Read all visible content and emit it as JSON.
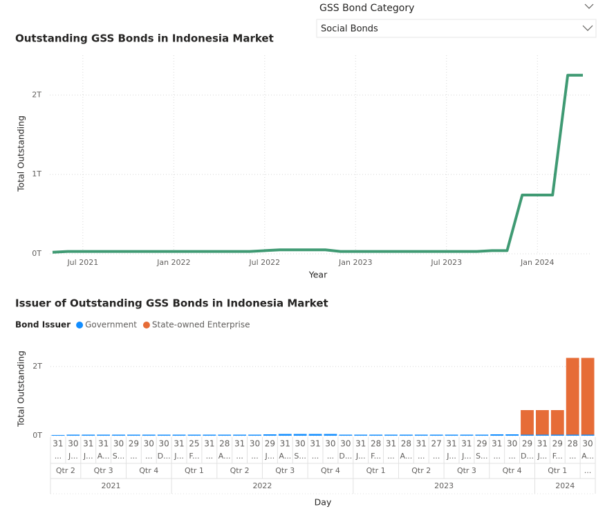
{
  "slicer": {
    "title": "GSS Bond Category",
    "selected": "Social Bonds"
  },
  "chart_data": [
    {
      "type": "line",
      "title": "Outstanding GSS Bonds in Indonesia Market",
      "x_label": "Year",
      "y_label": "Total Outstanding",
      "x": [
        "2021-05",
        "2021-06",
        "2021-07",
        "2021-08",
        "2021-09",
        "2021-10",
        "2021-11",
        "2021-12",
        "2022-01",
        "2022-02",
        "2022-03",
        "2022-04",
        "2022-05",
        "2022-06",
        "2022-07",
        "2022-08",
        "2022-09",
        "2022-10",
        "2022-11",
        "2022-12",
        "2023-01",
        "2023-02",
        "2023-03",
        "2023-04",
        "2023-05",
        "2023-06",
        "2023-07",
        "2023-08",
        "2023-09",
        "2023-10",
        "2023-11",
        "2023-12",
        "2024-01",
        "2024-02",
        "2024-03",
        "2024-04"
      ],
      "series": [
        {
          "name": "Total Outstanding",
          "color": "#3f9a73",
          "values": [
            0.02,
            0.03,
            0.03,
            0.03,
            0.03,
            0.03,
            0.03,
            0.03,
            0.03,
            0.03,
            0.03,
            0.03,
            0.03,
            0.03,
            0.04,
            0.05,
            0.05,
            0.05,
            0.05,
            0.03,
            0.03,
            0.03,
            0.03,
            0.03,
            0.03,
            0.03,
            0.03,
            0.03,
            0.03,
            0.04,
            0.04,
            0.74,
            0.74,
            0.74,
            2.25,
            2.25
          ]
        }
      ],
      "xlim": [
        "2021-05",
        "2024-04"
      ],
      "xticks": [
        {
          "value": "2021-07",
          "label": "Jul 2021"
        },
        {
          "value": "2022-01",
          "label": "Jan 2022"
        },
        {
          "value": "2022-07",
          "label": "Jul 2022"
        },
        {
          "value": "2023-01",
          "label": "Jan 2023"
        },
        {
          "value": "2023-07",
          "label": "Jul 2023"
        },
        {
          "value": "2024-01",
          "label": "Jan 2024"
        }
      ],
      "ylim": [
        0,
        2.5
      ],
      "yticks": [
        {
          "value": 0,
          "label": "0T"
        },
        {
          "value": 1,
          "label": "1T"
        },
        {
          "value": 2,
          "label": "2T"
        }
      ],
      "grid": true
    },
    {
      "type": "bar",
      "stacked": true,
      "title": "Issuer of Outstanding GSS Bonds in Indonesia Market",
      "x_label": "Day",
      "y_label": "Total Outstanding",
      "legend_title": "Bond Issuer",
      "categories": [
        "31",
        "30",
        "31",
        "31",
        "30",
        "29",
        "30",
        "30",
        "31",
        "25",
        "31",
        "28",
        "31",
        "30",
        "29",
        "31",
        "30",
        "31",
        "30",
        "30",
        "31",
        "28",
        "31",
        "28",
        "31",
        "27",
        "31",
        "31",
        "29",
        "31",
        "30",
        "29",
        "31",
        "29",
        "28",
        "30"
      ],
      "month_labels": [
        "...",
        "J...",
        "J...",
        "A...",
        "S...",
        "...",
        "...",
        "D...",
        "J...",
        "F...",
        "...",
        "A...",
        "...",
        "...",
        "J...",
        "A...",
        "S...",
        "...",
        "...",
        "D...",
        "J...",
        "F...",
        "...",
        "A...",
        "...",
        "...",
        "J...",
        "J...",
        "S...",
        "...",
        "...",
        "D...",
        "J...",
        "F...",
        "...",
        "A..."
      ],
      "quarters": [
        "Qtr 2",
        "Qtr 2",
        "Qtr 3",
        "Qtr 3",
        "Qtr 3",
        "Qtr 4",
        "Qtr 4",
        "Qtr 4",
        "Qtr 1",
        "Qtr 1",
        "Qtr 1",
        "Qtr 2",
        "Qtr 2",
        "Qtr 2",
        "Qtr 3",
        "Qtr 3",
        "Qtr 3",
        "Qtr 4",
        "Qtr 4",
        "Qtr 4",
        "Qtr 1",
        "Qtr 1",
        "Qtr 1",
        "Qtr 2",
        "Qtr 2",
        "Qtr 2",
        "Qtr 3",
        "Qtr 3",
        "Qtr 3",
        "Qtr 4",
        "Qtr 4",
        "Qtr 4",
        "Qtr 1",
        "Qtr 1",
        "Qtr 1",
        "..."
      ],
      "years": [
        "2021",
        "2021",
        "2021",
        "2021",
        "2021",
        "2021",
        "2021",
        "2021",
        "2022",
        "2022",
        "2022",
        "2022",
        "2022",
        "2022",
        "2022",
        "2022",
        "2022",
        "2022",
        "2022",
        "2022",
        "2023",
        "2023",
        "2023",
        "2023",
        "2023",
        "2023",
        "2023",
        "2023",
        "2023",
        "2023",
        "2023",
        "2023",
        "2024",
        "2024",
        "2024",
        "2024"
      ],
      "series": [
        {
          "name": "Government",
          "color": "#118dff",
          "values": [
            0.02,
            0.03,
            0.03,
            0.03,
            0.03,
            0.03,
            0.03,
            0.03,
            0.03,
            0.03,
            0.03,
            0.03,
            0.03,
            0.03,
            0.04,
            0.05,
            0.05,
            0.05,
            0.05,
            0.03,
            0.03,
            0.03,
            0.03,
            0.03,
            0.03,
            0.03,
            0.03,
            0.03,
            0.03,
            0.04,
            0.04,
            0.03,
            0.03,
            0.03,
            0.03,
            0.03
          ]
        },
        {
          "name": "State-owned Enterprise",
          "color": "#e66c37",
          "values": [
            null,
            null,
            null,
            null,
            null,
            null,
            null,
            null,
            null,
            null,
            null,
            null,
            null,
            null,
            null,
            null,
            null,
            null,
            null,
            null,
            null,
            null,
            null,
            null,
            null,
            null,
            null,
            null,
            null,
            null,
            null,
            0.71,
            0.71,
            0.71,
            2.22,
            2.22
          ]
        }
      ],
      "ylim": [
        0,
        2.6
      ],
      "yticks": [
        {
          "value": 0,
          "label": "0T"
        },
        {
          "value": 2,
          "label": "2T"
        }
      ],
      "grid": true
    }
  ]
}
